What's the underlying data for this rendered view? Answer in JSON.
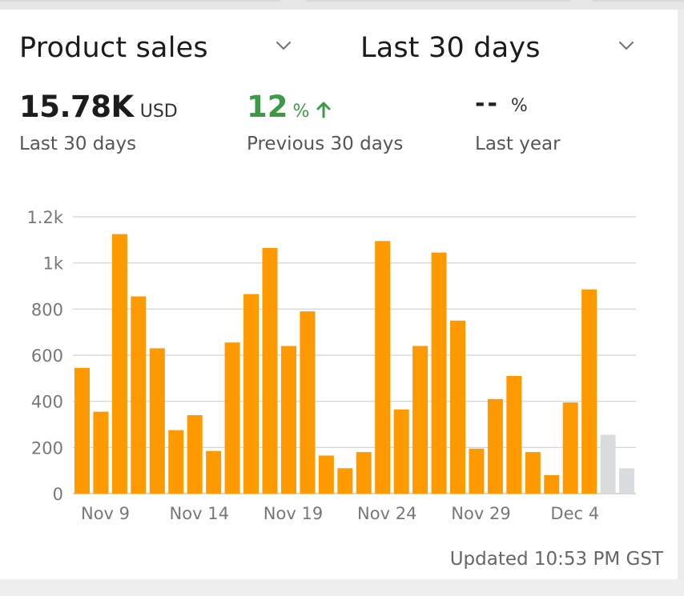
{
  "header": {
    "metric_selector": {
      "label": "Product sales",
      "icon": "chevron-down-icon"
    },
    "period_selector": {
      "label": "Last 30 days",
      "icon": "chevron-down-icon"
    }
  },
  "kpis": {
    "current": {
      "value": "15.78K",
      "unit": "USD",
      "label": "Last 30 days"
    },
    "previous": {
      "value": "12",
      "unit": "%",
      "label": "Previous 30 days",
      "trend_icon": "arrow-up-icon"
    },
    "last_year": {
      "value": "--",
      "unit": "%",
      "label": "Last year"
    }
  },
  "footer": {
    "updated": "Updated 10:53 PM GST"
  },
  "colors": {
    "bar": "#ff9900",
    "bar_pending": "#d9dcdf",
    "positive": "#3c9a45",
    "grid": "#d0d0d0",
    "axis_text": "#777777"
  },
  "chart_data": {
    "type": "bar",
    "title": "",
    "xlabel": "",
    "ylabel": "",
    "categories": [
      "Nov 9",
      "Nov 10",
      "Nov 11",
      "Nov 12",
      "Nov 13",
      "Nov 14",
      "Nov 15",
      "Nov 16",
      "Nov 17",
      "Nov 18",
      "Nov 19",
      "Nov 20",
      "Nov 21",
      "Nov 22",
      "Nov 23",
      "Nov 24",
      "Nov 25",
      "Nov 26",
      "Nov 27",
      "Nov 28",
      "Nov 29",
      "Nov 30",
      "Dec 1",
      "Dec 2",
      "Dec 3",
      "Dec 4",
      "Dec 5",
      "Dec 6",
      "Dec 7",
      "Dec 8",
      "Dec 9"
    ],
    "values": [
      545,
      355,
      1125,
      855,
      630,
      275,
      340,
      185,
      655,
      865,
      1065,
      640,
      790,
      165,
      110,
      180,
      1095,
      365,
      640,
      1045,
      750,
      195,
      410,
      510,
      180,
      80,
      395,
      885,
      255,
      110,
      0
    ],
    "pending_from_index": 28,
    "x_tick_labels": [
      {
        "index": 0,
        "label": "Nov 9"
      },
      {
        "index": 5,
        "label": "Nov 14"
      },
      {
        "index": 10,
        "label": "Nov 19"
      },
      {
        "index": 15,
        "label": "Nov 24"
      },
      {
        "index": 20,
        "label": "Nov 29"
      },
      {
        "index": 25,
        "label": "Dec 4"
      }
    ],
    "y_ticks": [
      0,
      200,
      400,
      600,
      800,
      1000,
      1200
    ],
    "y_tick_labels": [
      "0",
      "200",
      "400",
      "600",
      "800",
      "1k",
      "1.2k"
    ],
    "ylim": [
      0,
      1200
    ],
    "grid": true,
    "legend": "none"
  }
}
